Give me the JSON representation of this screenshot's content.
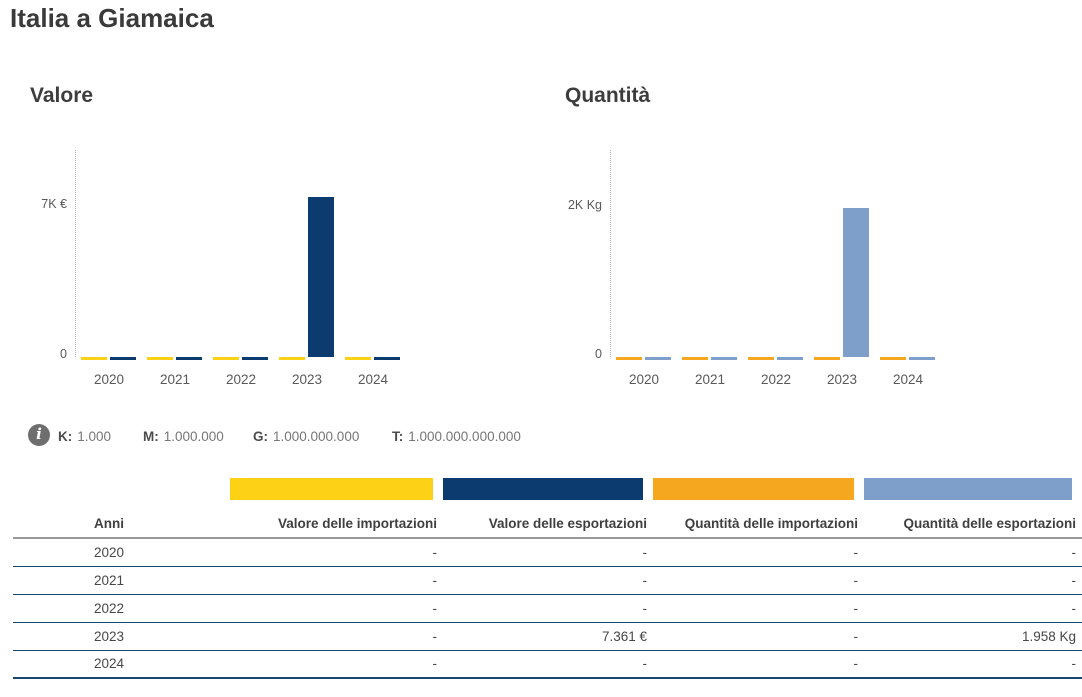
{
  "page": {
    "title": "Italia a Giamaica"
  },
  "chart_data": [
    {
      "type": "bar",
      "title": "Valore",
      "unit": "€",
      "categories": [
        "2020",
        "2021",
        "2022",
        "2023",
        "2024"
      ],
      "series": [
        {
          "key": "valore-importazioni",
          "name": "Valore delle importazioni",
          "color": "#FCD116",
          "values": [
            null,
            null,
            null,
            null,
            null
          ]
        },
        {
          "key": "valore-esportazioni",
          "name": "Valore delle esportazioni",
          "color": "#0C3B70",
          "values": [
            null,
            null,
            null,
            7361,
            null
          ]
        }
      ],
      "yticks": [
        {
          "label": "7K €",
          "value": 7000
        },
        {
          "label": "0",
          "value": 0
        }
      ],
      "ylim": [
        0,
        9500
      ],
      "grid": false,
      "legend_position": "none"
    },
    {
      "type": "bar",
      "title": "Quantità",
      "unit": "Kg",
      "categories": [
        "2020",
        "2021",
        "2022",
        "2023",
        "2024"
      ],
      "series": [
        {
          "key": "quantita-importazioni",
          "name": "Quantità delle importazioni",
          "color": "#F5A81F",
          "values": [
            null,
            null,
            null,
            null,
            null
          ]
        },
        {
          "key": "quantita-esportazioni",
          "name": "Quantità delle esportazioni",
          "color": "#7E9FCA",
          "values": [
            null,
            null,
            null,
            1958,
            null
          ]
        }
      ],
      "yticks": [
        {
          "label": "2K Kg",
          "value": 2000
        },
        {
          "label": "0",
          "value": 0
        }
      ],
      "ylim": [
        0,
        2720
      ],
      "grid": false,
      "legend_position": "none"
    }
  ],
  "info": {
    "icon_glyph": "i",
    "items": [
      {
        "key": "K:",
        "value": "1.000"
      },
      {
        "key": "M:",
        "value": "1.000.000"
      },
      {
        "key": "G:",
        "value": "1.000.000.000"
      },
      {
        "key": "T:",
        "value": "1.000.000.000.000"
      }
    ]
  },
  "table": {
    "columns": [
      {
        "label": "Anni",
        "swatch": null
      },
      {
        "label": "Valore delle importazioni",
        "swatch": "#FCD116"
      },
      {
        "label": "Valore delle esportazioni",
        "swatch": "#0C3B70"
      },
      {
        "label": "Quantità delle importazioni",
        "swatch": "#F5A81F"
      },
      {
        "label": "Quantità delle esportazioni",
        "swatch": "#7E9FCA"
      }
    ],
    "rows": [
      {
        "year": "2020",
        "cells": [
          "-",
          "-",
          "-",
          "-"
        ]
      },
      {
        "year": "2021",
        "cells": [
          "-",
          "-",
          "-",
          "-"
        ]
      },
      {
        "year": "2022",
        "cells": [
          "-",
          "-",
          "-",
          "-"
        ]
      },
      {
        "year": "2023",
        "cells": [
          "-",
          "7.361 €",
          "-",
          "1.958 Kg"
        ]
      },
      {
        "year": "2024",
        "cells": [
          "-",
          "-",
          "-",
          "-"
        ]
      }
    ]
  }
}
